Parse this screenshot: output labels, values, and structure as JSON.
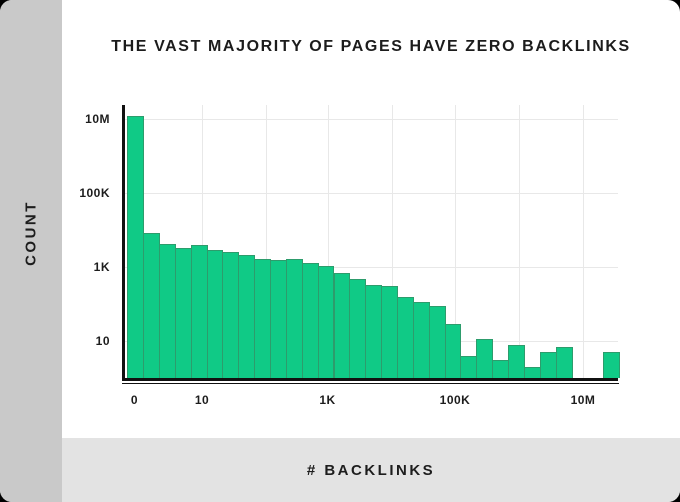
{
  "header": {
    "title": "THE VAST MAJORITY OF PAGES HAVE ZERO BACKLINKS"
  },
  "colors": {
    "bar_fill": "#10ca86",
    "bar_border": "#2d9c6c",
    "sidebar_bg": "#c9c9c9",
    "bottom_strip_bg": "#e3e3e3",
    "grid": "#e8e8e8",
    "axis": "#111111",
    "text": "#1d1d1d",
    "chart_bg": "#ffffff",
    "outer_bg": "#000000"
  },
  "chart_data": {
    "type": "bar",
    "title": "THE VAST MAJORITY OF PAGES HAVE ZERO BACKLINKS",
    "xlabel": "# BACKLINKS",
    "ylabel": "COUNT",
    "x_scale": "log histogram bins (~4 bins per decade), first bin is 0 backlinks",
    "y_scale": "log",
    "ylim": [
      1,
      25000000
    ],
    "grid": "on",
    "legend": "none",
    "x_tick_labels": [
      "0",
      "10",
      "1K",
      "100K",
      "10M"
    ],
    "y_tick_labels_bottom_to_top": [
      "10",
      "1K",
      "100K",
      "10M"
    ],
    "values": [
      12000000,
      8300,
      4300,
      3300,
      3900,
      2900,
      2500,
      2100,
      1650,
      1520,
      1680,
      1280,
      1050,
      700,
      480,
      320,
      300,
      155,
      115,
      87,
      29,
      4,
      11,
      3,
      8,
      2,
      5,
      7,
      0,
      0,
      5
    ]
  }
}
